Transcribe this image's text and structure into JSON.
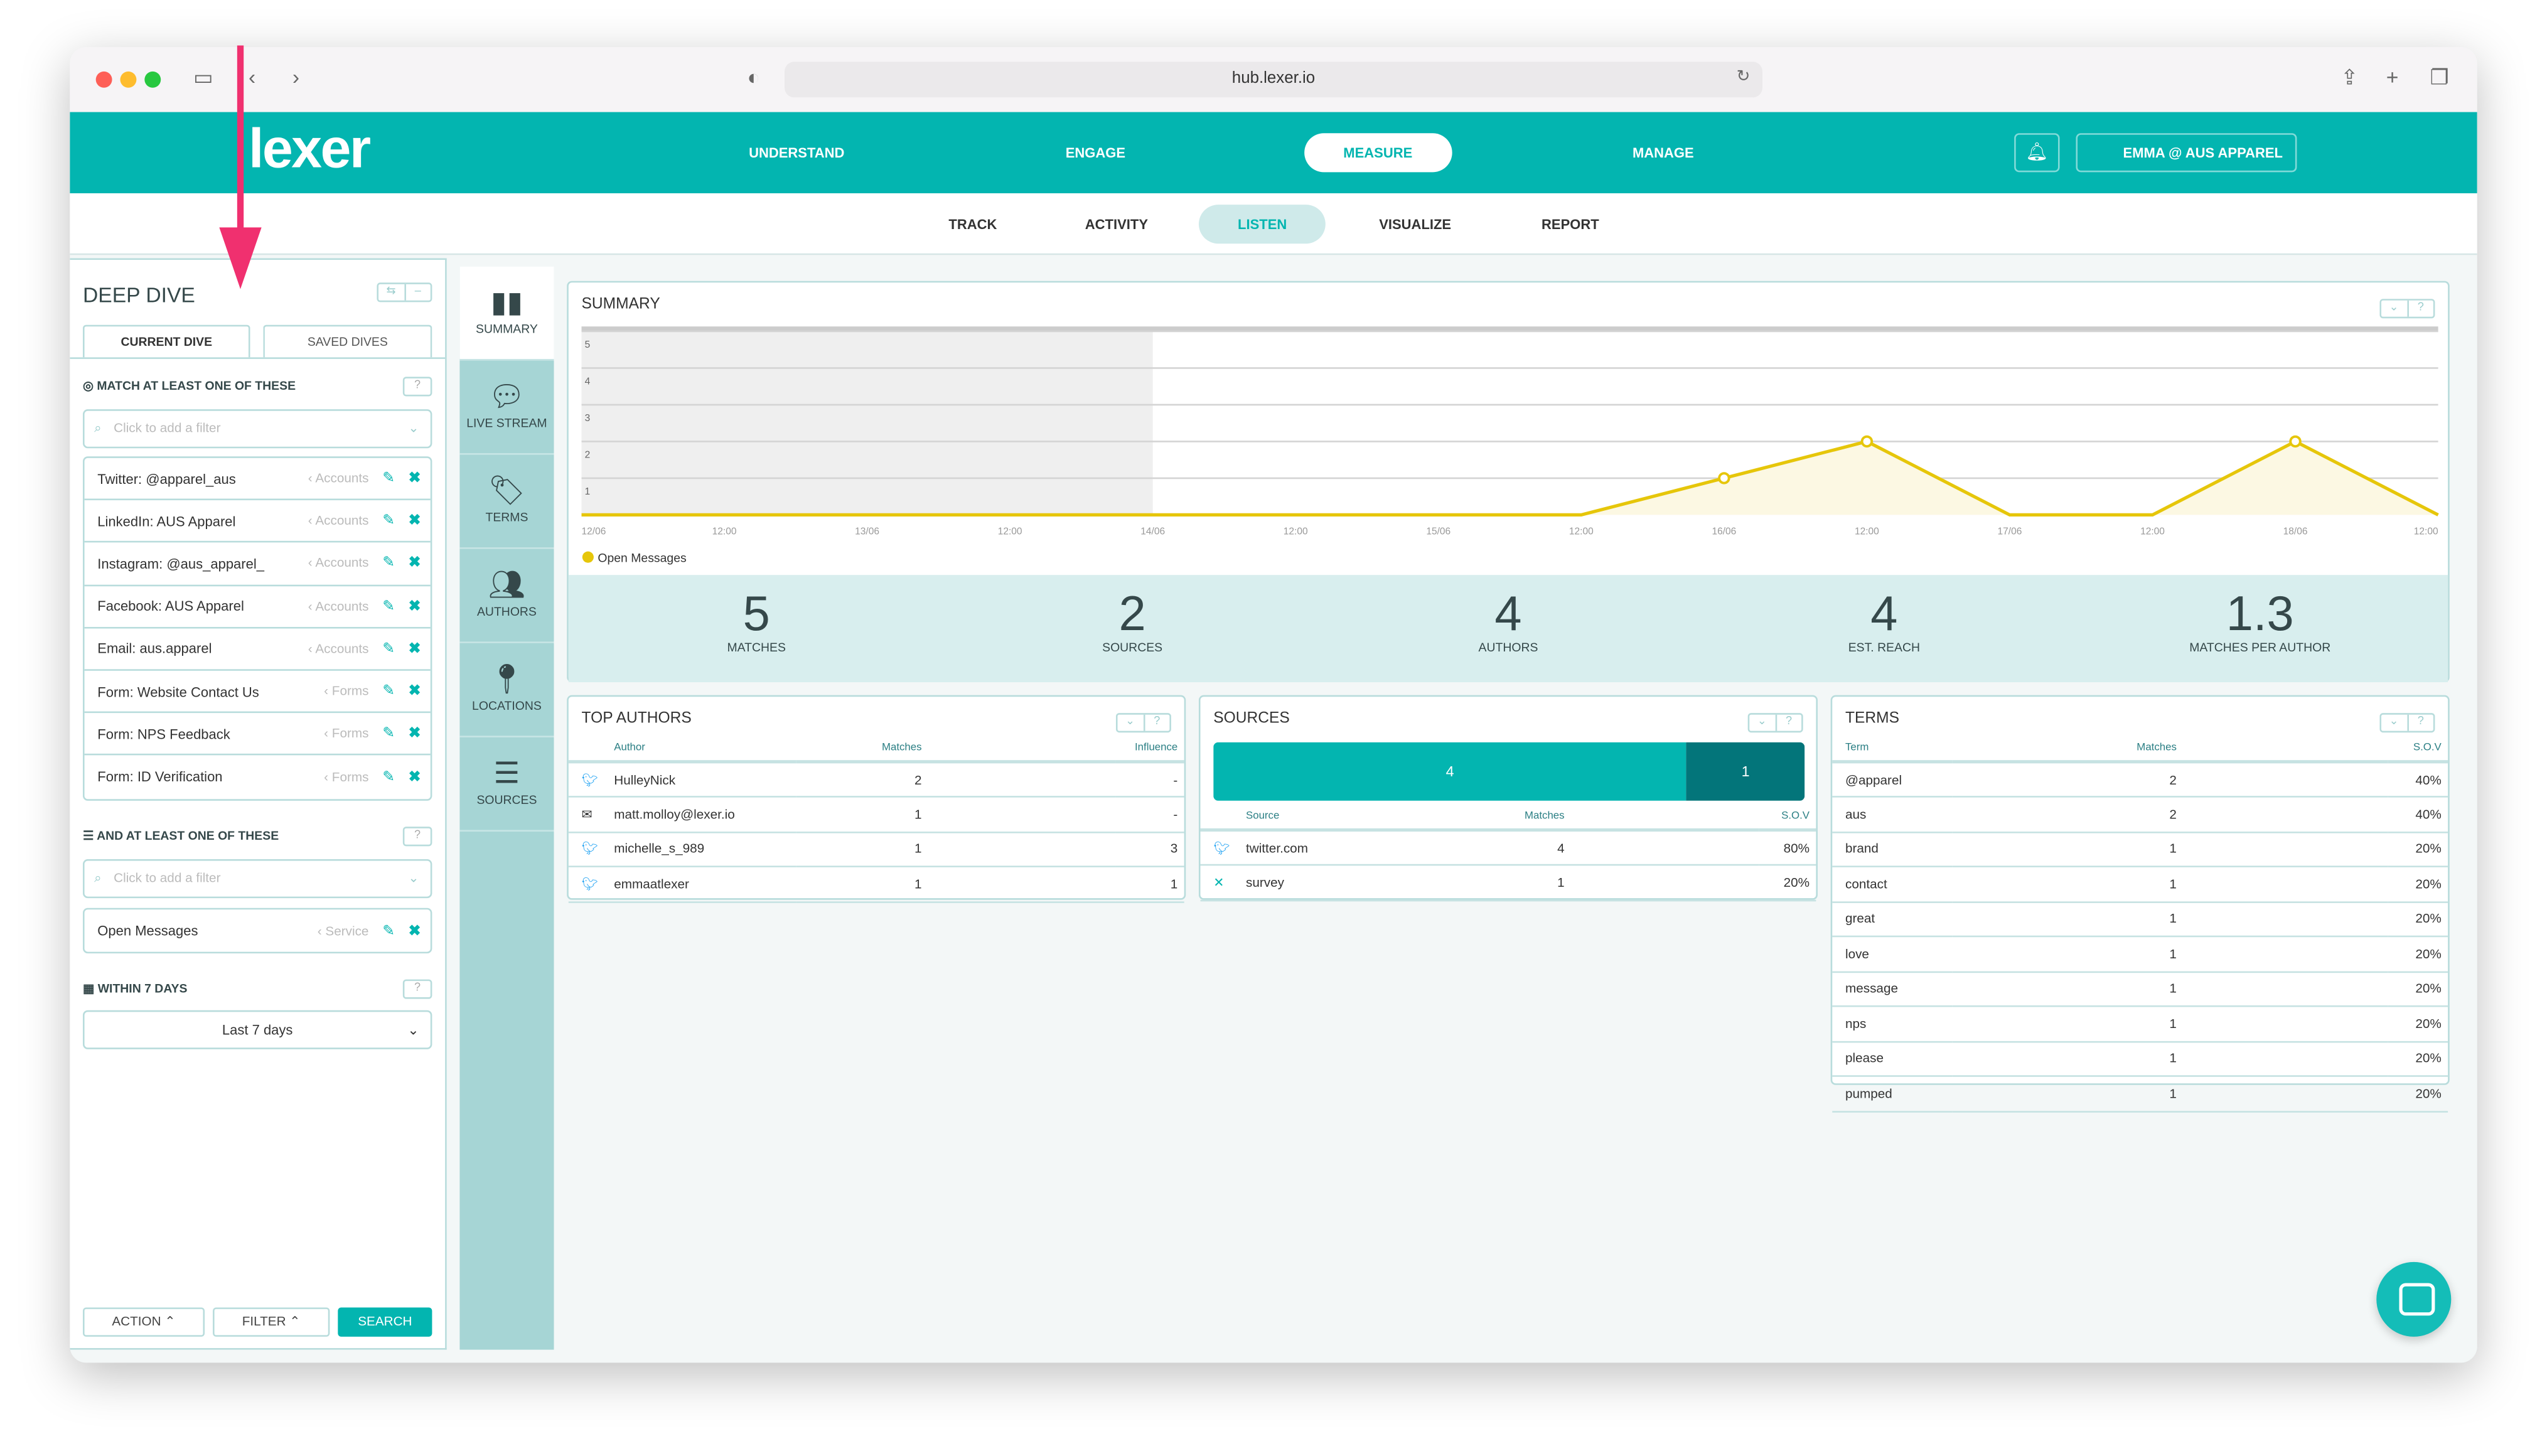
{
  "browser": {
    "url": "hub.lexer.io"
  },
  "brand": {
    "logo": "lexer",
    "accent": "#03b5b0",
    "dark": "#03757a"
  },
  "nav": {
    "items": [
      "UNDERSTAND",
      "ENGAGE",
      "MEASURE",
      "MANAGE"
    ],
    "active": "MEASURE",
    "user": "EMMA @ AUS APPAREL"
  },
  "subnav": {
    "items": [
      "TRACK",
      "ACTIVITY",
      "LISTEN",
      "VISUALIZE",
      "REPORT"
    ],
    "active": "LISTEN"
  },
  "deep_dive": {
    "title": "DEEP DIVE",
    "tabs": [
      "CURRENT DIVE",
      "SAVED DIVES"
    ],
    "match_label": "MATCH AT LEAST ONE OF THESE",
    "placeholder": "Click to add a filter",
    "filters": [
      {
        "label": "Twitter: @apparel_aus",
        "type": "Accounts"
      },
      {
        "label": "LinkedIn: AUS Apparel",
        "type": "Accounts"
      },
      {
        "label": "Instagram: @aus_apparel_",
        "type": "Accounts"
      },
      {
        "label": "Facebook: AUS Apparel",
        "type": "Accounts"
      },
      {
        "label": "Email: aus.apparel",
        "type": "Accounts"
      },
      {
        "label": "Form: Website Contact Us",
        "type": "Forms"
      },
      {
        "label": "Form: NPS Feedback",
        "type": "Forms"
      },
      {
        "label": "Form: ID Verification",
        "type": "Forms"
      }
    ],
    "and_label": "AND AT LEAST ONE OF THESE",
    "and_filters": [
      {
        "label": "Open Messages",
        "type": "Service"
      }
    ],
    "within_label": "WITHIN 7 DAYS",
    "range": "Last 7 days",
    "buttons": {
      "action": "ACTION",
      "filter": "FILTER",
      "search": "SEARCH"
    }
  },
  "rail": [
    {
      "label": "SUMMARY",
      "icon": "bar-chart-icon"
    },
    {
      "label": "LIVE STREAM",
      "icon": "speech-bubble-icon"
    },
    {
      "label": "TERMS",
      "icon": "tags-icon"
    },
    {
      "label": "AUTHORS",
      "icon": "users-icon"
    },
    {
      "label": "LOCATIONS",
      "icon": "map-pin-icon"
    },
    {
      "label": "SOURCES",
      "icon": "rss-icon"
    }
  ],
  "summary": {
    "title": "SUMMARY",
    "stats": [
      {
        "value": "5",
        "label": "MATCHES"
      },
      {
        "value": "2",
        "label": "SOURCES"
      },
      {
        "value": "4",
        "label": "AUTHORS"
      },
      {
        "value": "4",
        "label": "EST. REACH"
      },
      {
        "value": "1.3",
        "label": "MATCHES PER AUTHOR"
      }
    ]
  },
  "chart_data": {
    "type": "area",
    "x": [
      "12/06",
      "12:00",
      "13/06",
      "12:00",
      "14/06",
      "12:00",
      "15/06",
      "12:00",
      "16/06",
      "12:00",
      "17/06",
      "12:00",
      "18/06",
      "12:00"
    ],
    "series": [
      {
        "name": "Open Messages",
        "color": "#e6c60a",
        "values": [
          0,
          0,
          0,
          0,
          0,
          0,
          0,
          0,
          1,
          2,
          0,
          0,
          2,
          0
        ]
      }
    ],
    "ylim": [
      0,
      5
    ],
    "yticks": [
      1,
      2,
      3,
      4,
      5
    ],
    "grid": true,
    "shaded_until": "14/06",
    "legend": "bottom-left"
  },
  "top_authors": {
    "title": "TOP AUTHORS",
    "columns": [
      "Author",
      "Matches",
      "Influence"
    ],
    "rows": [
      {
        "icon": "twitter-icon",
        "author": "HulleyNick",
        "matches": "2",
        "influence": "-"
      },
      {
        "icon": "email-icon",
        "author": "matt.molloy@lexer.io",
        "matches": "1",
        "influence": "-"
      },
      {
        "icon": "twitter-icon",
        "author": "michelle_s_989",
        "matches": "1",
        "influence": "3"
      },
      {
        "icon": "twitter-icon",
        "author": "emmaatlexer",
        "matches": "1",
        "influence": "1"
      }
    ]
  },
  "sources": {
    "title": "SOURCES",
    "bar": [
      {
        "value": "4",
        "color": "#03b5b0"
      },
      {
        "value": "1",
        "color": "#03757a"
      }
    ],
    "columns": [
      "Source",
      "Matches",
      "S.O.V"
    ],
    "rows": [
      {
        "icon": "twitter-icon",
        "source": "twitter.com",
        "matches": "4",
        "sov": "80%"
      },
      {
        "icon": "survey-icon",
        "source": "survey",
        "matches": "1",
        "sov": "20%"
      }
    ]
  },
  "terms": {
    "title": "TERMS",
    "columns": [
      "Term",
      "Matches",
      "S.O.V"
    ],
    "rows": [
      [
        "@apparel",
        "2",
        "40%"
      ],
      [
        "aus",
        "2",
        "40%"
      ],
      [
        "brand",
        "1",
        "20%"
      ],
      [
        "contact",
        "1",
        "20%"
      ],
      [
        "great",
        "1",
        "20%"
      ],
      [
        "love",
        "1",
        "20%"
      ],
      [
        "message",
        "1",
        "20%"
      ],
      [
        "nps",
        "1",
        "20%"
      ],
      [
        "please",
        "1",
        "20%"
      ],
      [
        "pumped",
        "1",
        "20%"
      ]
    ]
  }
}
